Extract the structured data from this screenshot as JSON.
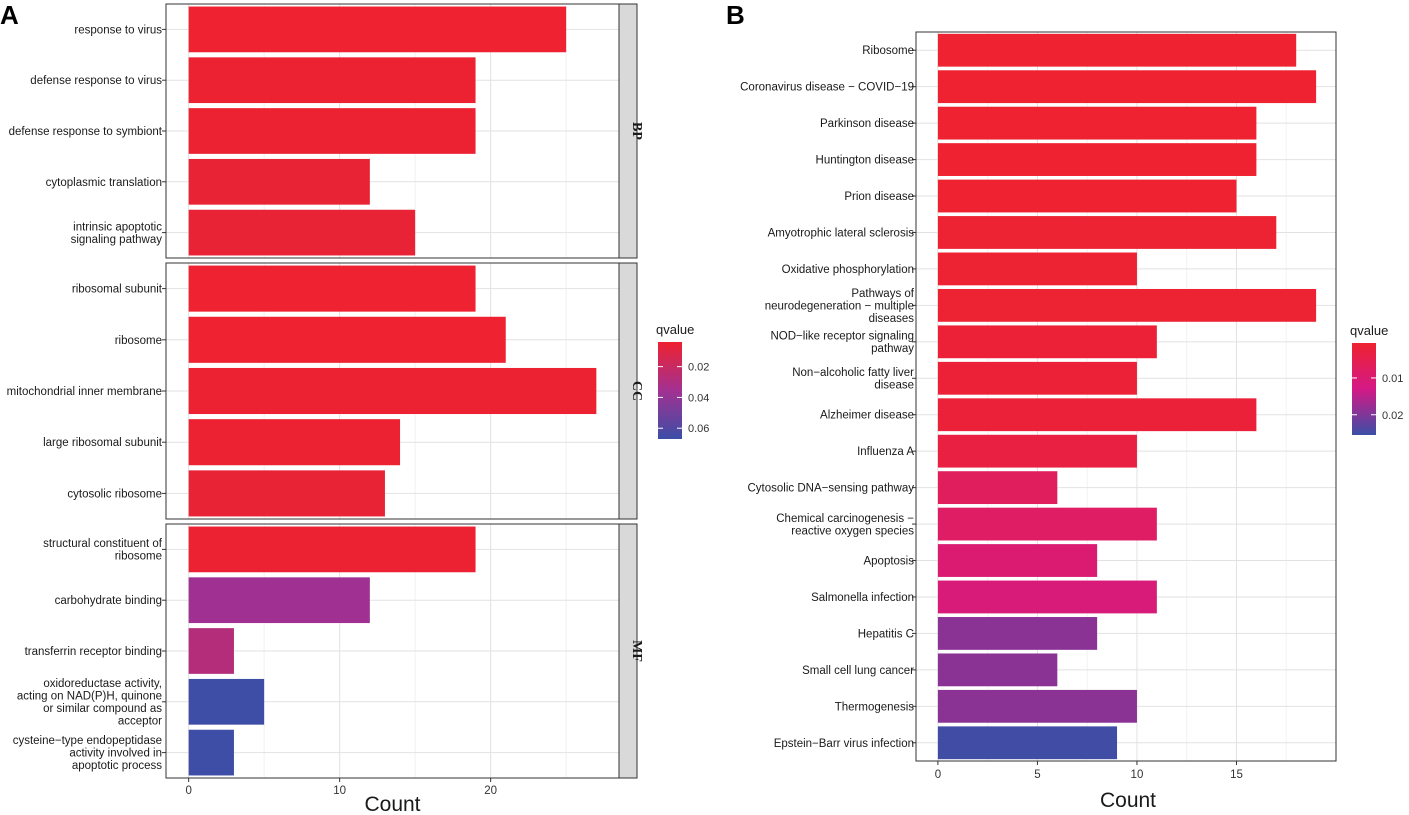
{
  "panels": {
    "a_label": "A",
    "b_label": "B"
  },
  "chart_data": [
    {
      "type": "bar",
      "orientation": "horizontal",
      "panel": "A",
      "xlabel": "Count",
      "ylabel": "",
      "xlim": [
        -1.5,
        28.5
      ],
      "xticks": [
        0,
        10,
        20
      ],
      "color_scale": {
        "title": "qvalue",
        "range": [
          0.004,
          0.067
        ],
        "ticks": [
          0.02,
          0.04,
          0.06
        ],
        "low_color": "#ee2230",
        "mid_color": "#a23192",
        "high_color": "#3b4ea6"
      },
      "facets": [
        {
          "label": "BP",
          "categories": [
            "response to virus",
            "defense response to virus",
            "defense response to symbiont",
            "cytoplasmic translation",
            "intrinsic apoptotic\nsignaling pathway"
          ],
          "values": [
            25,
            19,
            19,
            12,
            15
          ],
          "qvalues": [
            0.004,
            0.005,
            0.005,
            0.006,
            0.006
          ]
        },
        {
          "label": "CC",
          "categories": [
            "ribosomal subunit",
            "ribosome",
            "mitochondrial inner membrane",
            "large ribosomal subunit",
            "cytosolic ribosome"
          ],
          "values": [
            19,
            21,
            27,
            14,
            13
          ],
          "qvalues": [
            0.004,
            0.004,
            0.005,
            0.005,
            0.006
          ]
        },
        {
          "label": "MF",
          "categories": [
            "structural constituent of\nribosome",
            "carbohydrate binding",
            "transferrin receptor binding",
            "oxidoreductase activity,\nacting on NAD(P)H, quinone\nor similar compound as\nacceptor",
            "cysteine−type endopeptidase\nactivity involved in\napoptotic process"
          ],
          "values": [
            19,
            12,
            3,
            5,
            3
          ],
          "qvalues": [
            0.005,
            0.036,
            0.028,
            0.066,
            0.066
          ]
        }
      ]
    },
    {
      "type": "bar",
      "orientation": "horizontal",
      "panel": "B",
      "xlabel": "Count",
      "ylabel": "",
      "xlim": [
        -1.1,
        20.0
      ],
      "xticks": [
        0,
        5,
        10,
        15
      ],
      "color_scale": {
        "title": "qvalue",
        "range": [
          0.0005,
          0.0255
        ],
        "ticks": [
          0.01,
          0.02
        ],
        "low_color": "#ee2230",
        "mid_color": "#d41986",
        "high_color": "#3b4ea6"
      },
      "categories": [
        "Ribosome",
        "Coronavirus disease − COVID−19",
        "Parkinson disease",
        "Huntington disease",
        "Prion disease",
        "Amyotrophic lateral sclerosis",
        "Oxidative phosphorylation",
        "Pathways of\nneurodegeneration − multiple\ndiseases",
        "NOD−like receptor signaling\npathway",
        "Non−alcoholic fatty liver\ndisease",
        "Alzheimer disease",
        "Influenza A",
        "Cytosolic DNA−sensing pathway",
        "Chemical carcinogenesis −\nreactive oxygen species",
        "Apoptosis",
        "Salmonella infection",
        "Hepatitis C",
        "Small cell lung cancer",
        "Thermogenesis",
        "Epstein−Barr virus infection"
      ],
      "values": [
        18,
        19,
        16,
        16,
        15,
        17,
        10,
        19,
        11,
        10,
        16,
        10,
        6,
        11,
        8,
        11,
        8,
        6,
        10,
        9
      ],
      "qvalues": [
        0.0005,
        0.0005,
        0.0005,
        0.0005,
        0.0005,
        0.0008,
        0.001,
        0.001,
        0.0015,
        0.0015,
        0.002,
        0.003,
        0.007,
        0.008,
        0.01,
        0.011,
        0.019,
        0.019,
        0.019,
        0.025
      ]
    }
  ]
}
